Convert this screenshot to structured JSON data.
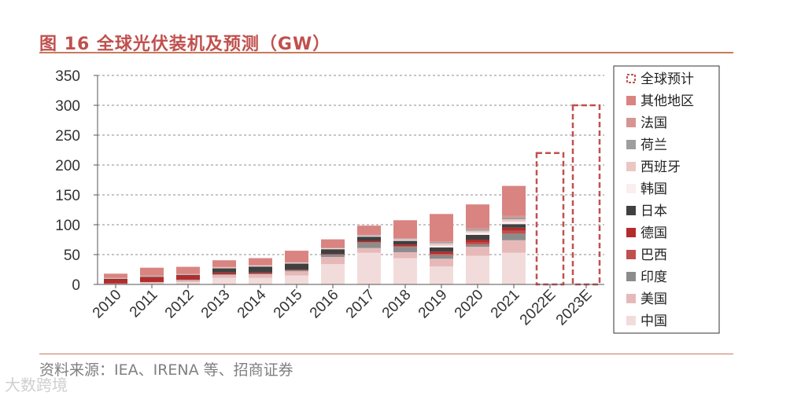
{
  "header": {
    "title": "图 16  全球光伏装机及预测（GW）"
  },
  "footer": {
    "source": "资料来源：IEA、IRENA 等、招商证券",
    "watermark": "大数跨境"
  },
  "chart_data": {
    "type": "bar",
    "stacked": true,
    "title": "全球光伏装机及预测（GW）",
    "xlabel": "",
    "ylabel": "",
    "ylim": [
      0,
      350
    ],
    "yticks": [
      0,
      50,
      100,
      150,
      200,
      250,
      300,
      350
    ],
    "grid": true,
    "legend_position": "right",
    "categories": [
      "2010",
      "2011",
      "2012",
      "2013",
      "2014",
      "2015",
      "2016",
      "2017",
      "2018",
      "2019",
      "2020",
      "2021",
      "2022E",
      "2023E"
    ],
    "series": [
      {
        "name": "中国",
        "color": "#f2dcdb",
        "values": [
          0.5,
          2,
          4,
          11,
          11,
          15,
          34,
          53,
          44,
          30,
          48,
          53,
          0,
          0
        ]
      },
      {
        "name": "美国",
        "color": "#e6b9b8",
        "values": [
          1,
          2,
          3,
          5,
          6,
          7,
          12,
          8,
          10,
          13,
          15,
          21,
          0,
          0
        ]
      },
      {
        "name": "印度",
        "color": "#8c8c8c",
        "values": [
          0,
          0,
          1,
          1,
          1,
          2,
          4,
          9,
          9,
          6,
          4,
          11,
          0,
          0
        ]
      },
      {
        "name": "巴西",
        "color": "#c0504d",
        "values": [
          0,
          0,
          0,
          0,
          0,
          0,
          0,
          1,
          1,
          2,
          3,
          5,
          0,
          0
        ]
      },
      {
        "name": "德国",
        "color": "#b22c2c",
        "values": [
          7,
          8,
          7,
          3,
          2,
          1,
          1,
          2,
          3,
          4,
          5,
          5,
          0,
          0
        ]
      },
      {
        "name": "日本",
        "color": "#404040",
        "values": [
          1,
          1,
          1,
          7,
          10,
          10,
          8,
          7,
          6,
          7,
          8,
          6,
          0,
          0
        ]
      },
      {
        "name": "韩国",
        "color": "#fbeeee",
        "values": [
          0,
          0,
          0,
          1,
          1,
          1,
          1,
          1,
          2,
          3,
          4,
          4,
          0,
          0
        ]
      },
      {
        "name": "西班牙",
        "color": "#ecc6c3",
        "values": [
          0.5,
          0.5,
          0.5,
          0.5,
          0.5,
          0.5,
          0.5,
          0.5,
          0.5,
          4,
          3,
          4,
          0,
          0
        ]
      },
      {
        "name": "荷兰",
        "color": "#9e9e9e",
        "values": [
          0,
          0,
          0,
          0,
          0,
          0,
          0,
          1,
          1,
          2,
          3,
          3,
          0,
          0
        ]
      },
      {
        "name": "法国",
        "color": "#d69592",
        "values": [
          1,
          1.5,
          1,
          1,
          1,
          1,
          1,
          1,
          1,
          1,
          1,
          3,
          0,
          0
        ]
      },
      {
        "name": "其他地区",
        "color": "#d98481",
        "values": [
          7,
          13,
          12,
          11,
          11.5,
          19,
          14,
          15,
          30,
          46,
          40,
          50,
          0,
          0
        ]
      },
      {
        "name": "全球预计",
        "color": "#c0504d",
        "dashed": true,
        "values": [
          null,
          null,
          null,
          null,
          null,
          null,
          null,
          null,
          null,
          null,
          null,
          null,
          220,
          300
        ]
      }
    ]
  }
}
